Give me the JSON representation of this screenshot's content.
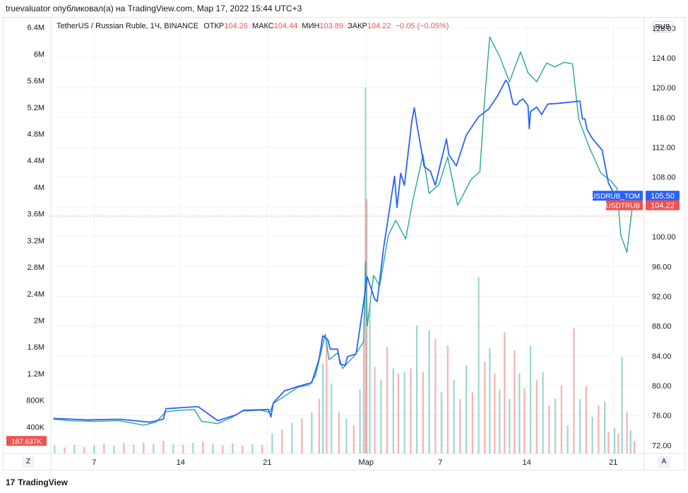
{
  "header": {
    "publisher_line": "truevaluator опубликовал(а) на TradingView.com, Мар 17, 2022 15:44 UTC+3"
  },
  "legend": {
    "symbol": "TetherUS / Russian Ruble, 1Ч, BINANCE",
    "open_label": "ОТКР",
    "open": "104.26",
    "high_label": "МАКС",
    "high": "104.44",
    "low_label": "МИН",
    "low": "103.89",
    "close_label": "ЗАКР",
    "close": "104.22",
    "change": "−0.05 (−0.05%)"
  },
  "currency_button": "RUB",
  "zoom_button": "Z",
  "auto_button": "A",
  "footer": {
    "logo_glyph": "17",
    "brand": "TradingView"
  },
  "colors": {
    "up": "#26a69a",
    "down": "#ef5350",
    "overlay": "#2962ff",
    "grid": "#f0f3fa",
    "axis_text": "#131722"
  },
  "chart_data": {
    "type": "line",
    "symbol": "USDTRUB",
    "overlay_symbol": "USDRUB_TOM",
    "price_axis": {
      "ticks": [
        "72.00",
        "76.00",
        "80.00",
        "84.00",
        "88.00",
        "92.00",
        "96.00",
        "100.00",
        "104.00",
        "108.00",
        "112.00",
        "116.00",
        "120.00",
        "124.00",
        "128.00"
      ],
      "min": 70.9,
      "max": 129.4
    },
    "volume_axis": {
      "ticks": [
        "400K",
        "800K",
        "1.2M",
        "1.6M",
        "2M",
        "2.4M",
        "2.8M",
        "3.2M",
        "3.6M",
        "4M",
        "4.4M",
        "4.8M",
        "5.2M",
        "5.6M",
        "6M",
        "6.4M"
      ],
      "min": 0,
      "max": 6.45
    },
    "x_axis": {
      "ticks": [
        "7",
        "14",
        "21",
        "Мар",
        "7",
        "14",
        "21"
      ],
      "tick_days": [
        7,
        14,
        21,
        29,
        35,
        42,
        49
      ],
      "min_day": 3.5,
      "max_day": 51.5
    },
    "last_price_labels": [
      {
        "name": "USDRUB_TOM",
        "value": "105.50"
      },
      {
        "name": "USDTRUB",
        "value": "104.22"
      }
    ],
    "volume_last_label": "187.637K",
    "usdtrub_path": [
      [
        3.7,
        75.5
      ],
      [
        5,
        75.3
      ],
      [
        7,
        75.2
      ],
      [
        9,
        75.3
      ],
      [
        11,
        74.7
      ],
      [
        12,
        75.1
      ],
      [
        12.8,
        76.5
      ],
      [
        14,
        76.7
      ],
      [
        15.1,
        76.8
      ],
      [
        15.7,
        75.2
      ],
      [
        17,
        74.9
      ],
      [
        18.2,
        75.8
      ],
      [
        19,
        76.6
      ],
      [
        20.5,
        76.7
      ],
      [
        21.2,
        76.4
      ],
      [
        21.5,
        77.6
      ],
      [
        23.5,
        79.8
      ],
      [
        24.4,
        80.1
      ],
      [
        24.9,
        81.3
      ],
      [
        25.4,
        84.8
      ],
      [
        25.7,
        86.9
      ],
      [
        26,
        83.5
      ],
      [
        26.7,
        84.4
      ],
      [
        27.1,
        82.3
      ],
      [
        28.1,
        84.1
      ],
      [
        28.8,
        85.9
      ],
      [
        28.95,
        96.7
      ],
      [
        29.1,
        88
      ],
      [
        29.6,
        94.8
      ],
      [
        30.1,
        93.4
      ],
      [
        30.8,
        100.2
      ],
      [
        31.4,
        102.2
      ],
      [
        32.2,
        99.7
      ],
      [
        32.8,
        105
      ],
      [
        33.6,
        111
      ],
      [
        34.1,
        105.8
      ],
      [
        34.9,
        107
      ],
      [
        35.6,
        110.7
      ],
      [
        36.4,
        104.2
      ],
      [
        37.5,
        107.7
      ],
      [
        38.2,
        108.7
      ],
      [
        38.6,
        118.7
      ],
      [
        39,
        126.8
      ],
      [
        39.8,
        124.2
      ],
      [
        40.6,
        120.8
      ],
      [
        41.5,
        124.8
      ],
      [
        42.1,
        122
      ],
      [
        42.8,
        120.8
      ],
      [
        43.6,
        123.3
      ],
      [
        44.3,
        122.8
      ],
      [
        45,
        123.4
      ],
      [
        45.7,
        123.2
      ],
      [
        46.2,
        115.8
      ],
      [
        47,
        112.2
      ],
      [
        48,
        108.5
      ],
      [
        48.8,
        107.5
      ],
      [
        49.3,
        106.5
      ],
      [
        49.6,
        100.2
      ],
      [
        50.1,
        97.9
      ],
      [
        50.5,
        103.5
      ],
      [
        50.7,
        104.22
      ]
    ],
    "usdrub_tom_path": [
      [
        3.7,
        75.6
      ],
      [
        6.5,
        75.4
      ],
      [
        9,
        75.5
      ],
      [
        11.5,
        75.1
      ],
      [
        12.6,
        75.5
      ],
      [
        12.8,
        76.9
      ],
      [
        15.4,
        77.2
      ],
      [
        17,
        75.3
      ],
      [
        18.5,
        76.1
      ],
      [
        19.1,
        76.7
      ],
      [
        21.1,
        76.8
      ],
      [
        21.3,
        75.8
      ],
      [
        21.5,
        77.7
      ],
      [
        22.4,
        79.3
      ],
      [
        23.5,
        79.9
      ],
      [
        24.6,
        80.4
      ],
      [
        25.2,
        83.6
      ],
      [
        25.5,
        86.7
      ],
      [
        25.9,
        86.2
      ],
      [
        26.1,
        84.9
      ],
      [
        26.7,
        84.9
      ],
      [
        26.9,
        82.9
      ],
      [
        27.3,
        82.7
      ],
      [
        27.5,
        83.9
      ],
      [
        28.1,
        84.2
      ],
      [
        28.2,
        84.3
      ],
      [
        28.5,
        87.7
      ],
      [
        29.1,
        94.6
      ],
      [
        29.7,
        91.6
      ],
      [
        29.9,
        91.3
      ],
      [
        30.4,
        98.3
      ],
      [
        31.3,
        108.1
      ],
      [
        31.5,
        103.9
      ],
      [
        31.8,
        108.5
      ],
      [
        32.1,
        106.9
      ],
      [
        32.7,
        115.5
      ],
      [
        32.9,
        117.3
      ],
      [
        33.1,
        115.2
      ],
      [
        33.7,
        109.4
      ],
      [
        34.2,
        108.8
      ],
      [
        34.6,
        106.9
      ],
      [
        35.5,
        113.1
      ],
      [
        35.7,
        111
      ],
      [
        36.3,
        109.5
      ],
      [
        37.1,
        113.6
      ],
      [
        38.1,
        116.1
      ],
      [
        38.9,
        117.1
      ],
      [
        39.6,
        118.8
      ],
      [
        40.3,
        121
      ],
      [
        40.5,
        120.6
      ],
      [
        40.9,
        117.8
      ],
      [
        41.2,
        117.7
      ],
      [
        41.4,
        118.2
      ],
      [
        41.7,
        118.5
      ],
      [
        42.1,
        117.6
      ],
      [
        42.2,
        114.5
      ],
      [
        42.3,
        116.8
      ],
      [
        42.8,
        117.4
      ],
      [
        43.2,
        116.4
      ],
      [
        43.7,
        117.8
      ],
      [
        44.6,
        117.9
      ],
      [
        46.3,
        118.2
      ],
      [
        46.5,
        115.8
      ],
      [
        46.7,
        115.8
      ],
      [
        46.9,
        114.3
      ],
      [
        47.3,
        113.2
      ],
      [
        48.1,
        111.6
      ],
      [
        48.6,
        107.2
      ],
      [
        49.2,
        105.3
      ],
      [
        49.9,
        104.7
      ],
      [
        50.5,
        104.8
      ],
      [
        50.9,
        105.5
      ]
    ],
    "volume_bars": [
      [
        3.8,
        0.12
      ],
      [
        4.6,
        0.09
      ],
      [
        5.4,
        0.13
      ],
      [
        6.2,
        0.1
      ],
      [
        7,
        0.12
      ],
      [
        7.8,
        0.15
      ],
      [
        8.6,
        0.11
      ],
      [
        9.4,
        0.16
      ],
      [
        10.2,
        0.13
      ],
      [
        11,
        0.16
      ],
      [
        11.8,
        0.14
      ],
      [
        12.6,
        0.19
      ],
      [
        13.4,
        0.14
      ],
      [
        14.2,
        0.13
      ],
      [
        15,
        0.16
      ],
      [
        15.8,
        0.18
      ],
      [
        16.6,
        0.14
      ],
      [
        17.4,
        0.12
      ],
      [
        18.2,
        0.15
      ],
      [
        19,
        0.11
      ],
      [
        19.8,
        0.14
      ],
      [
        20.6,
        0.13
      ],
      [
        21.4,
        0.3
      ],
      [
        22.2,
        0.36
      ],
      [
        23,
        0.46
      ],
      [
        23.8,
        0.52
      ],
      [
        24.6,
        0.62
      ],
      [
        25.2,
        0.82
      ],
      [
        25.5,
        1.35
      ],
      [
        25.8,
        1.7
      ],
      [
        26.2,
        1.05
      ],
      [
        26.8,
        0.62
      ],
      [
        27.4,
        0.52
      ],
      [
        28,
        0.42
      ],
      [
        28.5,
        0.96
      ],
      [
        28.8,
        1.72
      ],
      [
        28.95,
        5.5
      ],
      [
        29.05,
        3.82
      ],
      [
        29.3,
        2.2
      ],
      [
        29.7,
        1.3
      ],
      [
        30.2,
        1.1
      ],
      [
        30.7,
        1.6
      ],
      [
        31.2,
        1.28
      ],
      [
        31.6,
        1.2
      ],
      [
        32.1,
        1.22
      ],
      [
        32.6,
        1.28
      ],
      [
        33.1,
        1.92
      ],
      [
        33.6,
        1.22
      ],
      [
        34.1,
        1.85
      ],
      [
        34.6,
        1.72
      ],
      [
        35.1,
        0.92
      ],
      [
        35.6,
        1.62
      ],
      [
        36.1,
        1.1
      ],
      [
        36.6,
        0.82
      ],
      [
        37.1,
        1.32
      ],
      [
        37.6,
        0.92
      ],
      [
        38.1,
        2.65
      ],
      [
        38.6,
        1.38
      ],
      [
        39,
        1.58
      ],
      [
        39.4,
        1.2
      ],
      [
        39.8,
        0.96
      ],
      [
        40.2,
        1.82
      ],
      [
        40.6,
        0.82
      ],
      [
        41,
        1.55
      ],
      [
        41.4,
        1.2
      ],
      [
        41.8,
        0.98
      ],
      [
        42.3,
        1.62
      ],
      [
        42.8,
        1.1
      ],
      [
        43.3,
        1.22
      ],
      [
        43.8,
        0.72
      ],
      [
        44.3,
        0.82
      ],
      [
        44.8,
        1.02
      ],
      [
        45.3,
        0.42
      ],
      [
        45.8,
        1.88
      ],
      [
        46.3,
        0.82
      ],
      [
        46.8,
        1.01
      ],
      [
        47.3,
        0.55
      ],
      [
        47.8,
        0.72
      ],
      [
        48.3,
        0.78
      ],
      [
        48.6,
        0.32
      ],
      [
        49.1,
        0.38
      ],
      [
        49.4,
        0.3
      ],
      [
        49.7,
        1.45
      ],
      [
        50.1,
        0.62
      ],
      [
        50.4,
        0.35
      ],
      [
        50.7,
        0.188
      ]
    ]
  }
}
